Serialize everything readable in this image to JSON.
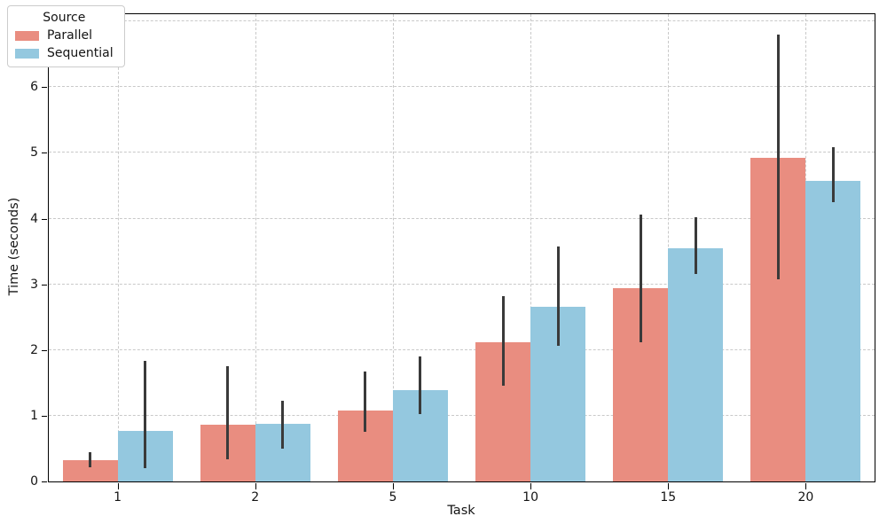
{
  "chart_data": {
    "type": "bar",
    "title": "",
    "xlabel": "Task",
    "ylabel": "Time (seconds)",
    "categories": [
      "1",
      "2",
      "5",
      "10",
      "15",
      "20"
    ],
    "series": [
      {
        "name": "Parallel",
        "color": "#e98d80",
        "values": [
          0.32,
          0.86,
          1.08,
          2.12,
          2.94,
          4.92
        ],
        "ci_low": [
          0.21,
          0.34,
          0.75,
          1.46,
          2.12,
          3.08
        ],
        "ci_high": [
          0.44,
          1.76,
          1.67,
          2.82,
          4.06,
          6.8
        ]
      },
      {
        "name": "Sequential",
        "color": "#94c8df",
        "values": [
          0.77,
          0.88,
          1.39,
          2.66,
          3.55,
          4.58
        ],
        "ci_low": [
          0.2,
          0.5,
          1.03,
          2.06,
          3.16,
          4.25
        ],
        "ci_high": [
          1.84,
          1.23,
          1.9,
          3.57,
          4.02,
          5.09
        ]
      }
    ],
    "ylim": [
      0,
      7.11
    ],
    "yticks": [
      0,
      1,
      2,
      3,
      4,
      5,
      6,
      7
    ],
    "grid": "dashed, both axes",
    "legend_position": "upper left",
    "error_bar_color": "#3a3a3a"
  },
  "legend": {
    "title": "Source",
    "entries": [
      "Parallel",
      "Sequential"
    ]
  },
  "axes": {
    "xlabel": "Task",
    "ylabel": "Time (seconds)"
  }
}
